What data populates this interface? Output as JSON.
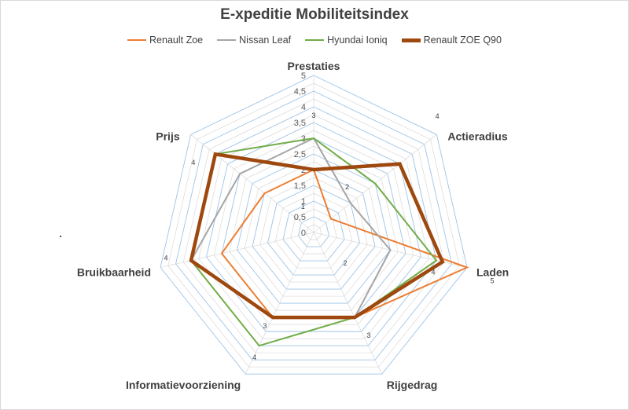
{
  "chart_data": {
    "type": "radar",
    "title": "E-xpeditie Mobiliteitsindex",
    "categories": [
      "Prestaties",
      "Actieradius",
      "Laden",
      "Rijgedrag",
      "Informatievoorziening",
      "Bruikbaarheid",
      "Prijs"
    ],
    "rlim": [
      0,
      5
    ],
    "radial_ticks": [
      "0",
      "0,5",
      "1",
      "1,5",
      "2",
      "2,5",
      "3",
      "3,5",
      "4",
      "4,5",
      "5"
    ],
    "grid": true,
    "legend_position": "top",
    "series": [
      {
        "name": "Renault Zoe",
        "color": "#ED7D31",
        "values": [
          2,
          0.7,
          5,
          3,
          3,
          3,
          2
        ]
      },
      {
        "name": "Nissan Leaf",
        "color": "#A5A5A5",
        "values": [
          3,
          1.5,
          2.5,
          3,
          3,
          4,
          3
        ]
      },
      {
        "name": "Hyundai Ioniq",
        "color": "#70AD47",
        "values": [
          3,
          2.5,
          4,
          3,
          4,
          4,
          4
        ]
      },
      {
        "name": "Renault ZOE Q90",
        "color": "#9E480E",
        "values": [
          2,
          3.5,
          4.2,
          3,
          3,
          4,
          4
        ]
      }
    ],
    "point_labels": [
      {
        "category": "Prestaties",
        "text": "3"
      },
      {
        "category": "Actieradius",
        "text": "4"
      },
      {
        "category": "Actieradius",
        "text": "2"
      },
      {
        "category": "Actieradius",
        "text": "1"
      },
      {
        "category": "Laden",
        "text": "2"
      },
      {
        "category": "Laden",
        "text": "4"
      },
      {
        "category": "Laden",
        "text": "5"
      },
      {
        "category": "Rijgedrag",
        "text": "3"
      },
      {
        "category": "Informatievoorziening",
        "text": "3"
      },
      {
        "category": "Informatievoorziening",
        "text": "4"
      },
      {
        "category": "Bruikbaarheid",
        "text": "4"
      },
      {
        "category": "Prijs",
        "text": "4"
      }
    ]
  }
}
